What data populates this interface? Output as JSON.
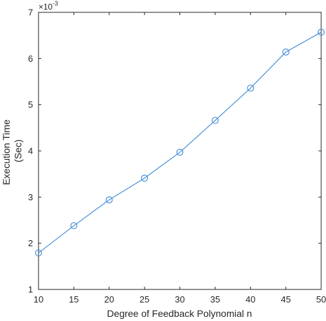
{
  "chart_data": {
    "type": "line",
    "xlabel": "Degree of Feedback Polynomial n",
    "ylabel_line1": "Execution Time",
    "ylabel_line2": "(Sec)",
    "exponent_base": "×10",
    "exponent_power": "-3",
    "xlim": [
      10,
      50
    ],
    "ylim": [
      1,
      7
    ],
    "xticks": [
      10,
      15,
      20,
      25,
      30,
      35,
      40,
      45,
      50
    ],
    "yticks": [
      1,
      2,
      3,
      4,
      5,
      6,
      7
    ],
    "grid": false,
    "series": [
      {
        "x": [
          10,
          15,
          20,
          25,
          30,
          35,
          40,
          45,
          50
        ],
        "y": [
          1.79,
          2.38,
          2.94,
          3.41,
          3.97,
          4.66,
          5.36,
          6.14,
          6.57
        ],
        "color": "#4a90d9",
        "marker": "circle"
      }
    ]
  }
}
